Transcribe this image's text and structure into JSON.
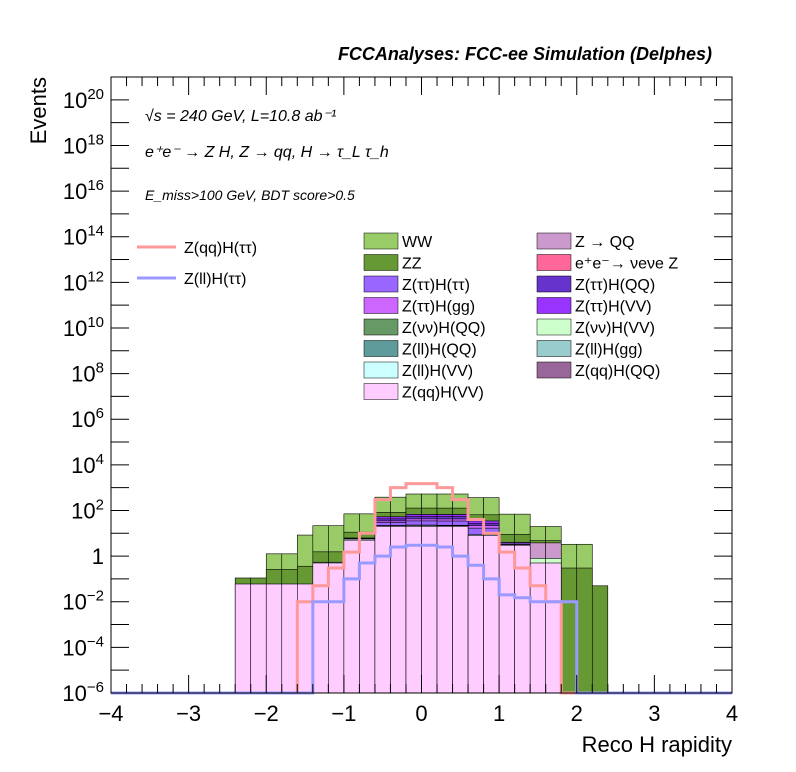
{
  "chart_data": {
    "type": "area",
    "title": "FCCAnalyses: FCC-ee Simulation (Delphes)",
    "xlabel": "Reco H rapidity",
    "ylabel": "Events",
    "xlim": [
      -4,
      4
    ],
    "ylim": [
      1e-06,
      1e+21
    ],
    "yscale": "log",
    "grid": false,
    "legend_placement": "top",
    "annotations": {
      "sqrt_s": "√s = 240 GeV, L=10.8 ab⁻¹",
      "process": "e⁺e⁻ → Z H, Z → qq, H → τ_L τ_h",
      "selection": "E_miss>100 GeV, BDT score>0.5"
    },
    "x_tick_labels": [
      "−4",
      "−3",
      "−2",
      "−1",
      "0",
      "1",
      "2",
      "3",
      "4"
    ],
    "y_tick_labels": [
      "10^-6",
      "10^-4",
      "10^-2",
      "1",
      "10^2",
      "10^4",
      "10^6",
      "10^8",
      "10^10",
      "10^12",
      "10^14",
      "10^16",
      "10^18",
      "10^20"
    ],
    "bin_edges": [
      -4.0,
      -3.8,
      -3.6,
      -3.4,
      -3.2,
      -3.0,
      -2.8,
      -2.6,
      -2.4,
      -2.2,
      -2.0,
      -1.8,
      -1.6,
      -1.4,
      -1.2,
      -1.0,
      -0.8,
      -0.6,
      -0.4,
      -0.2,
      0.0,
      0.2,
      0.4,
      0.6,
      0.8,
      1.0,
      1.2,
      1.4,
      1.6,
      1.8,
      2.0,
      2.2,
      2.4,
      2.6,
      2.8,
      3.0,
      3.2,
      3.4,
      3.6,
      3.8,
      4.0
    ],
    "stack": [
      {
        "name": "Z(qq)H(VV)",
        "color": "#ffccff",
        "values": [
          0,
          0,
          0,
          0,
          0,
          0,
          0,
          0,
          0.06,
          0.06,
          0.06,
          0.06,
          0.06,
          0.5,
          0.5,
          5,
          5,
          20,
          20,
          20,
          20,
          20,
          20,
          8,
          8,
          3,
          3,
          0.5,
          0.5,
          0,
          0,
          0,
          0,
          0,
          0,
          0,
          0,
          0,
          0,
          0
        ]
      },
      {
        "name": "Z(ll)H(VV)",
        "color": "#ccffff",
        "values": [
          0,
          0,
          0,
          0,
          0,
          0,
          0,
          0,
          0,
          0,
          0,
          0,
          0,
          0.04,
          0.04,
          0.6,
          0.6,
          1.5,
          1.5,
          2,
          2,
          1.5,
          1.5,
          0.8,
          0.8,
          0.15,
          0.15,
          0,
          0,
          0,
          0,
          0,
          0,
          0,
          0,
          0,
          0,
          0,
          0,
          0
        ]
      },
      {
        "name": "Z(ll)H(QQ)",
        "color": "#5f9b9b",
        "values": [
          0,
          0,
          0,
          0,
          0,
          0,
          0,
          0,
          0,
          0,
          0,
          0,
          0,
          0,
          0,
          0,
          0,
          0,
          0,
          0.3,
          0.3,
          0.3,
          0.3,
          0,
          0,
          0,
          0,
          0,
          0,
          0,
          0,
          0,
          0,
          0,
          0,
          0,
          0,
          0,
          0,
          0
        ]
      },
      {
        "name": "Z(ll)H(gg)",
        "color": "#99cccc",
        "values": [
          0,
          0,
          0,
          0,
          0,
          0,
          0,
          0,
          0,
          0,
          0,
          0,
          0,
          0,
          0,
          0,
          0,
          0.4,
          0.4,
          0.3,
          0.3,
          0.4,
          0.4,
          0,
          0,
          0,
          0,
          0,
          0,
          0,
          0,
          0,
          0,
          0,
          0,
          0,
          0,
          0,
          0,
          0
        ]
      },
      {
        "name": "Z(νν)H(QQ)",
        "color": "#669966",
        "values": [
          0,
          0,
          0,
          0,
          0,
          0,
          0,
          0,
          0,
          0,
          0,
          0,
          0,
          0,
          0,
          0,
          0,
          0,
          0,
          0.3,
          0.3,
          0.3,
          0.3,
          0,
          0,
          0,
          0,
          0,
          0,
          0,
          0,
          0,
          0,
          0,
          0,
          0,
          0,
          0,
          0,
          0
        ]
      },
      {
        "name": "Z(νν)H(VV)",
        "color": "#ccffcc",
        "values": [
          0,
          0,
          0,
          0,
          0,
          0,
          0,
          0,
          0,
          0,
          0,
          0,
          0,
          0,
          0,
          0,
          0,
          0,
          0,
          0,
          0,
          0,
          0,
          0,
          0,
          0.1,
          0.1,
          0.3,
          0.3,
          0,
          0,
          0,
          0,
          0,
          0,
          0,
          0,
          0,
          0,
          0
        ]
      },
      {
        "name": "Z(ττ)H(ττ)",
        "color": "#9966ff",
        "values": [
          0,
          0,
          0,
          0,
          0,
          0,
          0,
          0,
          0,
          0,
          0,
          0,
          0,
          0,
          0,
          0.2,
          0.2,
          8,
          8,
          12,
          12,
          12,
          12,
          8,
          8,
          0.5,
          0.5,
          0,
          0,
          0,
          0,
          0,
          0,
          0,
          0,
          0,
          0,
          0,
          0,
          0
        ]
      },
      {
        "name": "Z(ττ)H(gg)",
        "color": "#cc66ff",
        "values": [
          0,
          0,
          0,
          0,
          0,
          0,
          0,
          0,
          0,
          0,
          0,
          0,
          0,
          0,
          0,
          0.3,
          0.3,
          5,
          5,
          8,
          8,
          8,
          8,
          5,
          5,
          0.3,
          0.3,
          0,
          0,
          0,
          0,
          0,
          0,
          0,
          0,
          0,
          0,
          0,
          0,
          0
        ]
      },
      {
        "name": "Z(ττ)H(QQ)",
        "color": "#6633cc",
        "values": [
          0,
          0,
          0,
          0,
          0,
          0,
          0,
          0,
          0,
          0,
          0,
          0,
          0,
          0,
          0,
          0,
          0,
          8,
          8,
          12,
          12,
          12,
          12,
          5,
          5,
          0,
          0,
          0,
          0,
          0,
          0,
          0,
          0,
          0,
          0,
          0,
          0,
          0,
          0,
          0
        ]
      },
      {
        "name": "Z(ττ)H(VV)",
        "color": "#9933ff",
        "values": [
          0,
          0,
          0,
          0,
          0,
          0,
          0,
          0,
          0,
          0,
          0,
          0,
          0,
          0,
          0,
          0,
          0,
          10,
          10,
          12,
          12,
          12,
          12,
          8,
          8,
          0,
          0,
          0,
          0,
          0,
          0,
          0,
          0,
          0,
          0,
          0,
          0,
          0,
          0,
          0
        ]
      },
      {
        "name": "Z(qq)H(QQ)",
        "color": "#996699",
        "values": [
          0,
          0,
          0,
          0,
          0,
          0,
          0,
          0,
          0,
          0,
          0,
          0,
          0,
          0,
          0,
          0,
          0,
          0,
          0,
          0,
          0,
          0,
          0,
          0,
          0,
          0,
          0,
          0,
          0,
          0,
          0,
          0,
          0,
          0,
          0,
          0,
          0,
          0,
          0,
          0
        ]
      },
      {
        "name": "e⁺e⁻→ νeνe Z",
        "color": "#ff6699",
        "values": [
          0,
          0,
          0,
          0,
          0,
          0,
          0,
          0,
          0,
          0,
          0,
          0,
          0,
          0,
          0,
          0.1,
          0.1,
          0.3,
          0.3,
          0.4,
          0.4,
          0.3,
          0.3,
          0,
          0,
          0,
          0,
          0,
          0,
          0,
          0,
          0,
          0,
          0,
          0,
          0,
          0,
          0,
          0,
          0
        ]
      },
      {
        "name": "Z → QQ",
        "color": "#cc99cc",
        "values": [
          0,
          0,
          0,
          0,
          0,
          0,
          0,
          0,
          0,
          0,
          0,
          0,
          0,
          0,
          0,
          0,
          0,
          0,
          0,
          0,
          0,
          0,
          0,
          0,
          0,
          0,
          0,
          3,
          3,
          0,
          0,
          0,
          0,
          0,
          0,
          0,
          0,
          0,
          0,
          0
        ]
      },
      {
        "name": "ZZ",
        "color": "#669933",
        "values": [
          0,
          0,
          0,
          0,
          0,
          0,
          0,
          0,
          0.05,
          0.05,
          0.2,
          0.2,
          0.3,
          1,
          1,
          5,
          5,
          30,
          30,
          60,
          60,
          60,
          60,
          30,
          30,
          5,
          5,
          1,
          1,
          0.3,
          0.3,
          0.05,
          0,
          0,
          0,
          0,
          0,
          0,
          0,
          0
        ]
      },
      {
        "name": "WW",
        "color": "#99cc66",
        "values": [
          0,
          0,
          0,
          0,
          0,
          0,
          0,
          0,
          0,
          0,
          1,
          1,
          8,
          20,
          20,
          60,
          60,
          300,
          300,
          400,
          400,
          400,
          400,
          300,
          300,
          60,
          60,
          15,
          15,
          3,
          3,
          0,
          0,
          0,
          0,
          0,
          0,
          0,
          0,
          0
        ]
      }
    ],
    "signals": [
      {
        "name": "Z(qq)H(ττ)",
        "color": "#ff9999",
        "values": [
          0,
          0,
          0,
          0,
          0,
          0,
          0,
          0,
          0,
          0,
          0,
          0,
          0.01,
          0.05,
          0.3,
          1.5,
          10,
          300,
          1000,
          1500,
          1500,
          1000,
          300,
          40,
          10,
          1.5,
          0.3,
          0.05,
          0.01,
          0,
          0,
          0,
          0,
          0,
          0,
          0,
          0,
          0,
          0,
          0
        ]
      },
      {
        "name": "Z(ll)H(ττ)",
        "color": "#9999ff",
        "values": [
          0,
          0,
          0,
          0,
          0,
          0,
          0,
          0,
          0,
          0,
          0,
          0,
          0,
          0.01,
          0.01,
          0.1,
          0.5,
          1,
          2.5,
          3,
          3,
          2.5,
          1,
          0.4,
          0.1,
          0.02,
          0.015,
          0.01,
          0.01,
          0.01,
          0,
          0,
          0,
          0,
          0,
          0,
          0,
          0,
          0,
          0
        ]
      }
    ]
  },
  "legend": {
    "signals": [
      "Z(qq)H(ττ)",
      "Z(ll)H(ττ)"
    ],
    "backgrounds_left": [
      "WW",
      "ZZ",
      "Z(ττ)H(ττ)",
      "Z(ττ)H(gg)",
      "Z(νν)H(QQ)",
      "Z(ll)H(QQ)",
      "Z(ll)H(VV)",
      "Z(qq)H(VV)"
    ],
    "backgrounds_right": [
      "Z → QQ",
      "e⁺e⁻→ νeνe Z",
      "Z(ττ)H(QQ)",
      "Z(ττ)H(VV)",
      "Z(νν)H(VV)",
      "Z(ll)H(gg)",
      "Z(qq)H(QQ)"
    ]
  }
}
